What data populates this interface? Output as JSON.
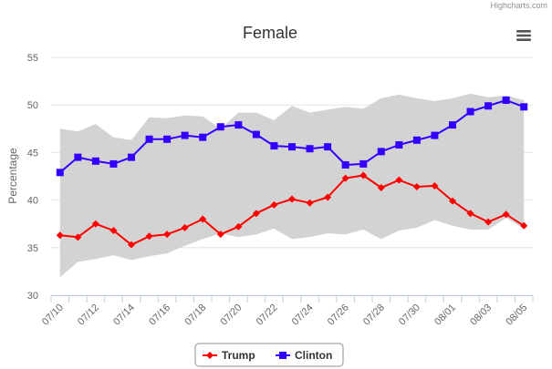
{
  "credits": "Highcharts.com",
  "menu": {
    "icon": "hamburger-menu-icon"
  },
  "chart_data": {
    "type": "line",
    "title": "Female",
    "ylabel": "Percentage",
    "xlabel": "",
    "ylim": [
      30,
      55
    ],
    "yticks": [
      30,
      35,
      40,
      45,
      50,
      55
    ],
    "grid": true,
    "categories": [
      "07/10",
      "07/11",
      "07/12",
      "07/13",
      "07/14",
      "07/15",
      "07/16",
      "07/17",
      "07/18",
      "07/19",
      "07/20",
      "07/21",
      "07/22",
      "07/23",
      "07/24",
      "07/25",
      "07/26",
      "07/27",
      "07/28",
      "07/29",
      "07/30",
      "07/31",
      "08/01",
      "08/02",
      "08/03",
      "08/04",
      "08/05"
    ],
    "x_tick_labels": [
      "07/10",
      "07/12",
      "07/14",
      "07/16",
      "07/18",
      "07/20",
      "07/22",
      "07/24",
      "07/26",
      "07/28",
      "07/30",
      "08/01",
      "08/03",
      "08/05"
    ],
    "band": {
      "name": "Range",
      "color": "#d3d3d3",
      "low": [
        31.9,
        33.5,
        33.8,
        34.2,
        33.7,
        34.1,
        34.4,
        35.2,
        35.9,
        36.5,
        36.1,
        36.4,
        37.0,
        35.9,
        36.1,
        36.5,
        36.4,
        36.9,
        35.9,
        36.8,
        37.1,
        37.9,
        37.3,
        36.9,
        36.9,
        38.1,
        37.0
      ],
      "high": [
        47.5,
        47.2,
        48.0,
        46.6,
        46.3,
        48.7,
        48.6,
        48.9,
        48.8,
        47.5,
        49.2,
        49.2,
        48.4,
        49.9,
        49.2,
        49.5,
        49.8,
        49.6,
        50.7,
        51.1,
        50.7,
        50.4,
        50.7,
        51.2,
        50.8,
        51.0,
        50.5
      ]
    },
    "series": [
      {
        "name": "Trump",
        "color": "#ff0000",
        "marker": "diamond",
        "values": [
          36.3,
          36.1,
          37.5,
          36.8,
          35.3,
          36.2,
          36.4,
          37.1,
          38.0,
          36.4,
          37.2,
          38.6,
          39.5,
          40.1,
          39.7,
          40.3,
          42.3,
          42.6,
          41.3,
          42.1,
          41.4,
          41.5,
          39.9,
          38.6,
          37.7,
          38.5,
          37.3
        ]
      },
      {
        "name": "Clinton",
        "color": "#3300ff",
        "marker": "square",
        "values": [
          42.9,
          44.5,
          44.1,
          43.8,
          44.5,
          46.4,
          46.4,
          46.8,
          46.6,
          47.7,
          47.9,
          46.9,
          45.7,
          45.6,
          45.4,
          45.6,
          43.7,
          43.8,
          45.1,
          45.8,
          46.3,
          46.8,
          47.9,
          49.3,
          49.9,
          50.5,
          49.8
        ]
      }
    ],
    "legend": {
      "placement": "bottom-center"
    }
  }
}
